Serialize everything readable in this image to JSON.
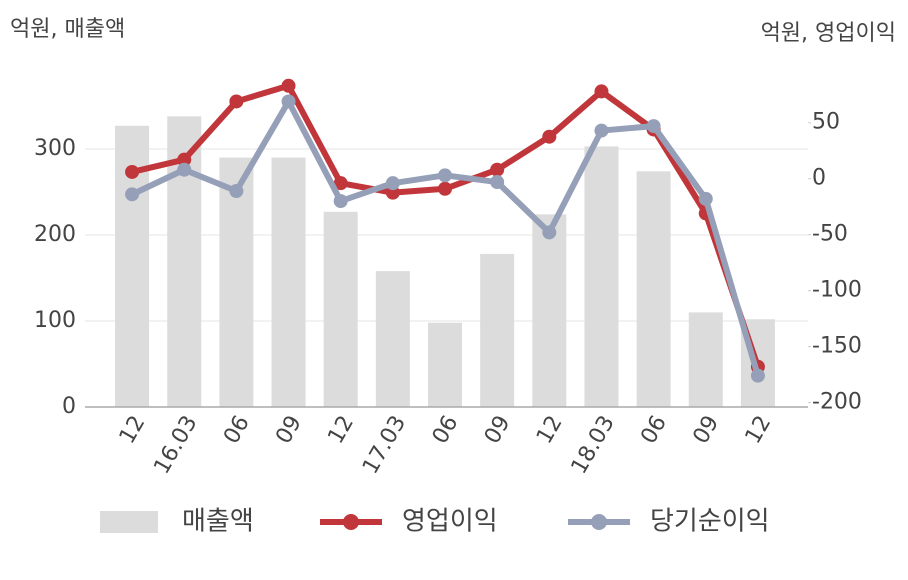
{
  "chart_data": {
    "type": "bar-line",
    "left_axis_label": "억원, 매출액",
    "right_axis_label": "억원, 영업이익",
    "categories": [
      "12",
      "16.03",
      "06",
      "09",
      "12",
      "17.03",
      "06",
      "09",
      "12",
      "18.03",
      "06",
      "09",
      "12"
    ],
    "series": [
      {
        "name": "매출액",
        "type": "bar",
        "color": "#dcdcdc",
        "values": [
          327,
          338,
          290,
          290,
          227,
          158,
          98,
          178,
          224,
          303,
          274,
          110,
          102
        ]
      },
      {
        "name": "영업이익",
        "type": "line",
        "axis": "y2",
        "color": "#c0363a",
        "values": [
          6,
          17,
          69,
          83,
          -4,
          -12.5,
          -9,
          8,
          37.5,
          78,
          44,
          -31,
          -168
        ]
      },
      {
        "name": "당기순이익",
        "type": "line",
        "axis": "y2",
        "color": "#95a0b8",
        "values": [
          -14,
          8,
          -11,
          69,
          -20,
          -4,
          3,
          -3,
          -48,
          43,
          47,
          -18,
          -176
        ]
      }
    ],
    "ylim": [
      0,
      380
    ],
    "yticks": [
      0,
      100,
      200,
      300
    ],
    "y2lim": [
      -204,
      88
    ],
    "y2ticks": [
      -200,
      -150,
      -100,
      -50,
      0,
      50
    ],
    "grid": true
  }
}
